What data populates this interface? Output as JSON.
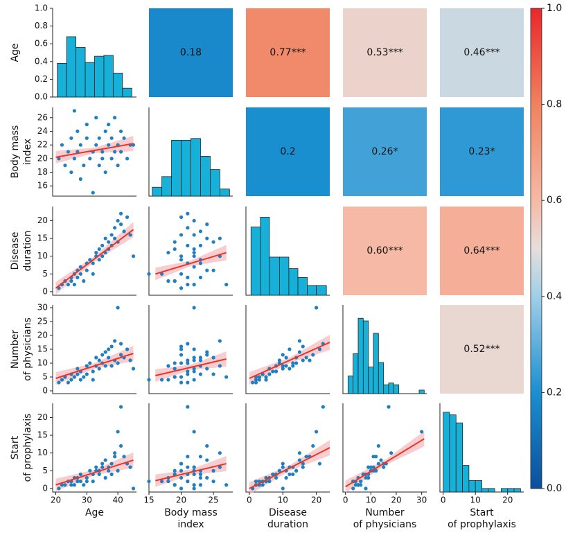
{
  "chart_data": {
    "type": "pairplot",
    "clim": [
      0,
      1
    ],
    "cticks": [
      {
        "value": 0,
        "label": "0.0"
      },
      {
        "value": 0.2,
        "label": "0.2"
      },
      {
        "value": 0.4,
        "label": "0.4"
      },
      {
        "value": 0.6,
        "label": "0.6"
      },
      {
        "value": 0.8,
        "label": "0.8"
      },
      {
        "value": 1,
        "label": "1.0"
      }
    ],
    "hist_ylim": [
      0,
      1
    ],
    "variables": [
      {
        "label": [
          "Age"
        ],
        "xlim": [
          19,
          46
        ],
        "xticks": [
          20,
          30,
          40
        ],
        "ylim": [
          0,
          1
        ],
        "yticks": [
          {
            "value": 0,
            "label": "0.0"
          },
          {
            "value": 0.2,
            "label": "0.2"
          },
          {
            "value": 0.4,
            "label": "0.4"
          },
          {
            "value": 0.6,
            "label": "0.6"
          },
          {
            "value": 0.8,
            "label": "0.8"
          },
          {
            "value": 1,
            "label": "1.0"
          }
        ],
        "hist": {
          "bins": [
            20.5,
            23.5,
            26.5,
            29.5,
            32.5,
            35.5,
            38.5,
            41.5,
            44.5
          ],
          "heights": [
            0.38,
            0.68,
            0.56,
            0.39,
            0.46,
            0.47,
            0.27,
            0.1
          ]
        },
        "values": [
          21,
          22,
          23,
          24,
          25,
          25,
          26,
          27,
          27,
          28,
          28,
          29,
          30,
          30,
          31,
          32,
          32,
          33,
          33,
          34,
          34,
          35,
          35,
          36,
          36,
          37,
          37,
          38,
          38,
          39,
          39,
          40,
          40,
          41,
          41,
          42,
          43,
          44,
          45,
          26
        ]
      },
      {
        "label": [
          "Body mass",
          "index"
        ],
        "xlim": [
          15,
          28
        ],
        "xticks": [
          15,
          20,
          25
        ],
        "ylim": [
          14.5,
          27.5
        ],
        "yticks": [
          16,
          18,
          20,
          22,
          24,
          26
        ],
        "hist": {
          "bins": [
            15.5,
            17,
            18.5,
            20,
            21.5,
            23,
            24.5,
            26,
            27.5
          ],
          "heights": [
            0.1,
            0.22,
            0.63,
            0.63,
            0.65,
            0.45,
            0.3,
            0.08
          ]
        },
        "values": [
          20,
          22,
          19,
          21,
          23,
          18,
          20,
          21,
          24,
          17,
          22,
          19,
          23,
          25,
          20,
          21,
          15,
          22,
          26,
          19,
          23,
          21,
          20,
          24,
          18,
          22,
          25,
          20,
          23,
          21,
          26,
          22,
          19,
          24,
          21,
          23,
          20,
          22,
          22,
          27
        ]
      },
      {
        "label": [
          "Disease",
          "duration"
        ],
        "xlim": [
          -1,
          24
        ],
        "xticks": [
          0,
          10,
          20
        ],
        "ylim": [
          -1,
          24
        ],
        "yticks": [
          0,
          5,
          10,
          15,
          20
        ],
        "hist": {
          "bins": [
            0.5,
            3.3,
            6,
            9,
            11.8,
            14.5,
            17.3,
            20,
            23
          ],
          "heights": [
            0.77,
            0.88,
            0.43,
            0.43,
            0.3,
            0.2,
            0.11,
            0.11
          ]
        },
        "values": [
          1,
          2,
          3,
          2,
          4,
          3,
          5,
          4,
          6,
          5,
          7,
          3,
          8,
          6,
          9,
          8,
          5,
          11,
          10,
          12,
          9,
          13,
          10,
          15,
          11,
          12,
          14,
          16,
          13,
          18,
          15,
          20,
          14,
          19,
          22,
          17,
          21,
          16,
          10,
          2
        ]
      },
      {
        "label": [
          "Number",
          "of physicians"
        ],
        "xlim": [
          -1,
          32
        ],
        "xticks": [
          0,
          10,
          20,
          30
        ],
        "ylim": [
          -1,
          31
        ],
        "yticks": [
          0,
          5,
          10,
          15,
          20,
          25,
          30
        ],
        "hist": {
          "bins": [
            1,
            3,
            5,
            7,
            9,
            11,
            13,
            15,
            17,
            19,
            21,
            23,
            25,
            27,
            29,
            31
          ],
          "heights": [
            0.2,
            0.45,
            0.85,
            0.82,
            0.3,
            0.68,
            0.35,
            0.1,
            0.12,
            0.1,
            0,
            0,
            0,
            0,
            0.04
          ]
        },
        "values": [
          3,
          4,
          5,
          3,
          6,
          4,
          5,
          6,
          8,
          4,
          7,
          5,
          9,
          6,
          10,
          7,
          4,
          12,
          9,
          8,
          11,
          10,
          13,
          14,
          9,
          15,
          12,
          16,
          9,
          11,
          18,
          30,
          10,
          13,
          17,
          12,
          15,
          11,
          8,
          5
        ]
      },
      {
        "label": [
          "Start",
          "of prophylaxis"
        ],
        "xlim": [
          -1,
          25
        ],
        "xticks": [
          0,
          10,
          20
        ],
        "ylim": [
          -1,
          24
        ],
        "yticks": [
          0,
          5,
          10,
          15,
          20
        ],
        "hist": {
          "bins": [
            0,
            2,
            4,
            6,
            8,
            10,
            12,
            14,
            16,
            18,
            20,
            22,
            24
          ],
          "heights": [
            0.9,
            0.87,
            0.78,
            0.3,
            0.13,
            0.13,
            0.04,
            0.04,
            0,
            0.04,
            0.04,
            0.04
          ]
        },
        "values": [
          0,
          1,
          1,
          2,
          1,
          2,
          3,
          2,
          3,
          2,
          4,
          1,
          3,
          2,
          5,
          4,
          2,
          5,
          6,
          4,
          5,
          6,
          7,
          8,
          3,
          6,
          5,
          7,
          4,
          9,
          10,
          16,
          5,
          12,
          23,
          9,
          7,
          6,
          0,
          1
        ]
      }
    ],
    "correlations": [
      [
        0.18,
        {
          "value": 0.77,
          "label": "0.77***"
        },
        {
          "value": 0.53,
          "label": "0.53***"
        },
        {
          "value": 0.46,
          "label": "0.46***"
        }
      ],
      [
        0.2,
        {
          "value": 0.26,
          "label": "0.26*"
        },
        {
          "value": 0.23,
          "label": "0.23*"
        }
      ],
      [
        {
          "value": 0.6,
          "label": "0.60***"
        },
        {
          "value": 0.64,
          "label": "0.64***"
        }
      ],
      [
        {
          "value": 0.52,
          "label": "0.52***"
        }
      ]
    ],
    "fits": [
      [
        [
          [
            20,
            20.2
          ],
          [
            45,
            22.2
          ]
        ]
      ],
      [
        [
          [
            20,
            1
          ],
          [
            45,
            17.5
          ]
        ],
        [
          [
            16,
            5
          ],
          [
            27,
            11
          ]
        ]
      ],
      [
        [
          [
            20,
            4.5
          ],
          [
            45,
            13.5
          ]
        ],
        [
          [
            16,
            5.5
          ],
          [
            27,
            11.5
          ]
        ],
        [
          [
            0,
            4.5
          ],
          [
            24,
            17.5
          ]
        ]
      ],
      [
        [
          [
            20,
            1
          ],
          [
            45,
            8
          ]
        ],
        [
          [
            16,
            2.2
          ],
          [
            27,
            7
          ]
        ],
        [
          [
            0,
            0
          ],
          [
            24,
            11.5
          ]
        ],
        [
          [
            0,
            0.5
          ],
          [
            31,
            14
          ]
        ]
      ]
    ]
  }
}
